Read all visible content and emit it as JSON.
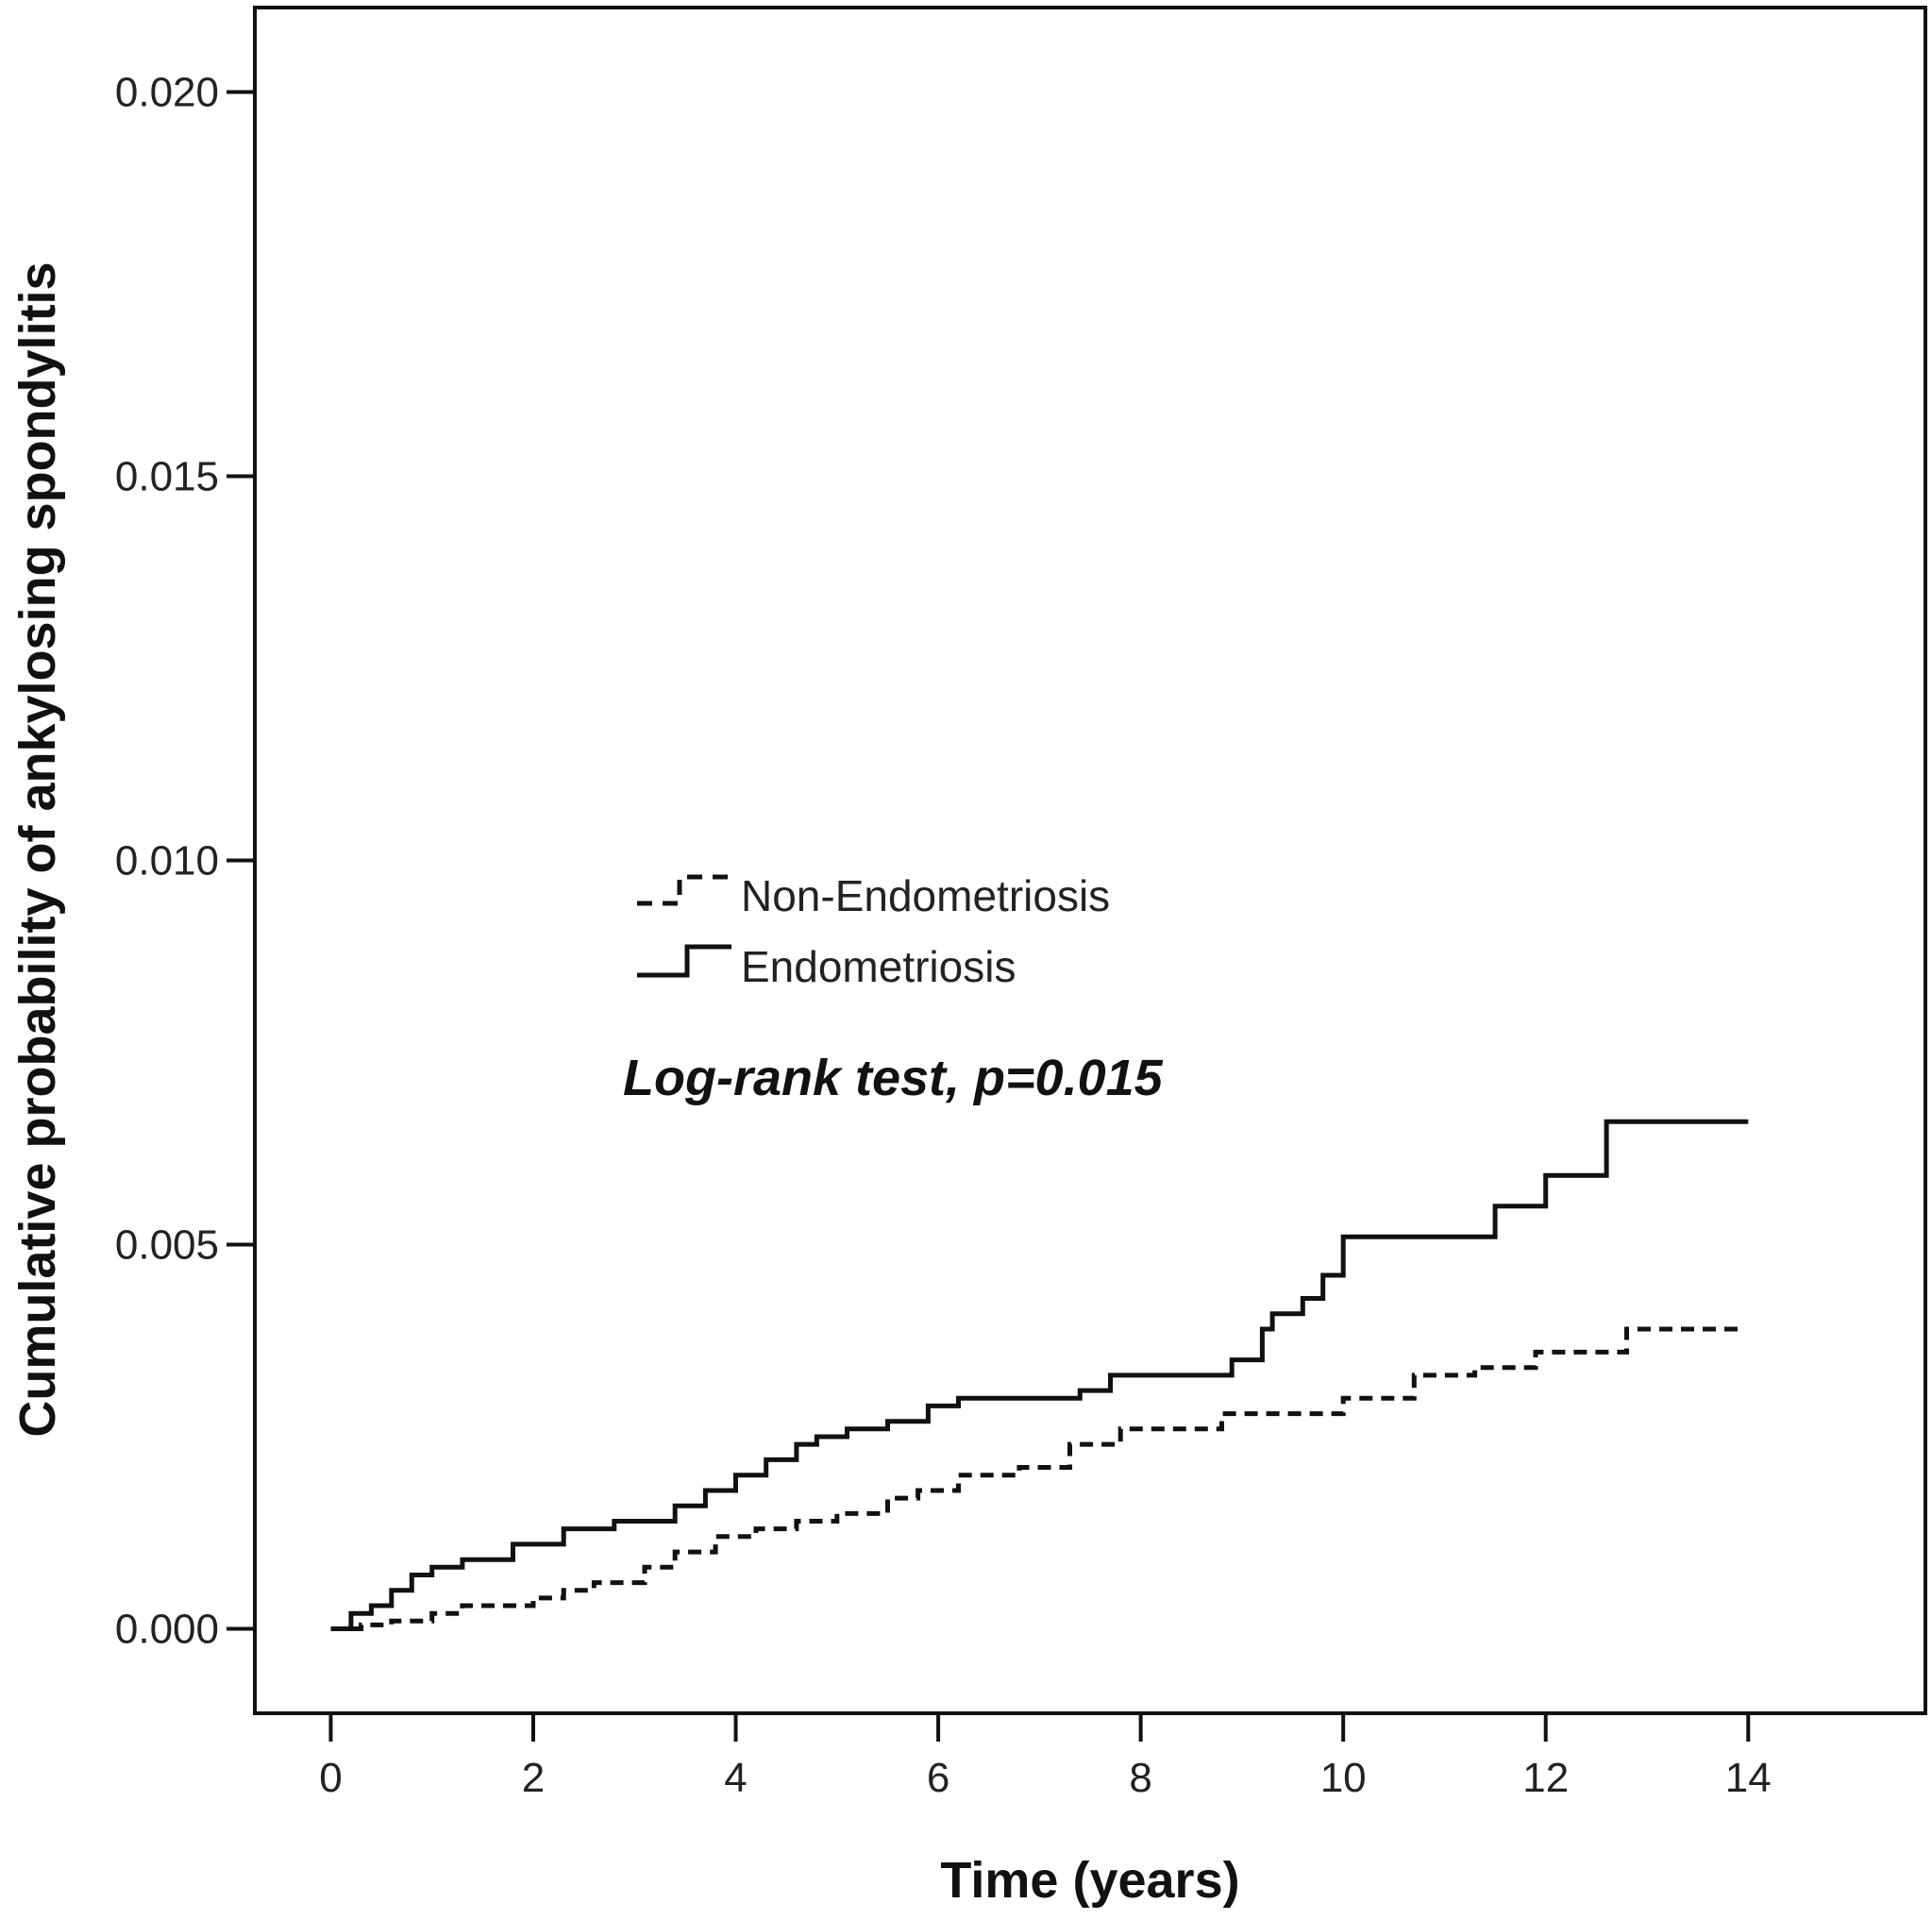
{
  "chart_data": {
    "type": "line",
    "step": true,
    "title": "",
    "xlabel": "Time (years)",
    "ylabel": "Cumulative probability of ankylosing spondylitis",
    "xlim": [
      -0.75,
      15.75
    ],
    "ylim": [
      -0.0011,
      0.0211
    ],
    "xticks": [
      0,
      2,
      4,
      6,
      8,
      10,
      12,
      14
    ],
    "xtick_labels": [
      "0",
      "2",
      "4",
      "6",
      "8",
      "10",
      "12",
      "14"
    ],
    "yticks": [
      0.0,
      0.005,
      0.01,
      0.015,
      0.02
    ],
    "ytick_labels": [
      "0.000",
      "0.005",
      "0.010",
      "0.015",
      "0.020"
    ],
    "grid": false,
    "legend_position": "center-left",
    "annotation": "Log-rank test, p=0.015",
    "series": [
      {
        "name": "Non-Endometriosis",
        "line_style": "dashed",
        "color": "#111111",
        "x": [
          0,
          0.3,
          0.6,
          1.0,
          1.3,
          2.0,
          2.3,
          2.6,
          3.1,
          3.4,
          3.8,
          4.2,
          4.6,
          5.0,
          5.5,
          5.8,
          6.2,
          6.8,
          7.3,
          7.8,
          8.8,
          9.5,
          10.0,
          10.7,
          11.3,
          11.9,
          12.8,
          13.9
        ],
        "values": [
          0.0,
          5e-05,
          0.0001,
          0.0002,
          0.0003,
          0.0004,
          0.0005,
          0.0006,
          0.0008,
          0.001,
          0.0012,
          0.0013,
          0.0014,
          0.0015,
          0.0017,
          0.0018,
          0.002,
          0.0021,
          0.0024,
          0.0026,
          0.0028,
          0.0028,
          0.003,
          0.0033,
          0.0034,
          0.0036,
          0.0039,
          0.0039
        ]
      },
      {
        "name": "Endometriosis",
        "line_style": "solid",
        "color": "#111111",
        "x": [
          0,
          0.2,
          0.4,
          0.6,
          0.8,
          1.0,
          1.3,
          1.8,
          2.3,
          2.8,
          3.4,
          3.7,
          4.0,
          4.3,
          4.6,
          4.8,
          5.1,
          5.5,
          5.9,
          6.2,
          6.7,
          7.4,
          7.7,
          8.6,
          8.9,
          9.2,
          9.3,
          9.6,
          9.8,
          10.0,
          10.5,
          11.5,
          12.0,
          12.6,
          14.0
        ],
        "values": [
          0.0,
          0.0002,
          0.0003,
          0.0005,
          0.0007,
          0.0008,
          0.0009,
          0.0011,
          0.0013,
          0.0014,
          0.0016,
          0.0018,
          0.002,
          0.0022,
          0.0024,
          0.0025,
          0.0026,
          0.0027,
          0.0029,
          0.003,
          0.003,
          0.0031,
          0.0033,
          0.0033,
          0.0035,
          0.0039,
          0.0041,
          0.0043,
          0.0046,
          0.0051,
          0.0051,
          0.0055,
          0.0059,
          0.0066,
          0.0066
        ]
      }
    ]
  }
}
